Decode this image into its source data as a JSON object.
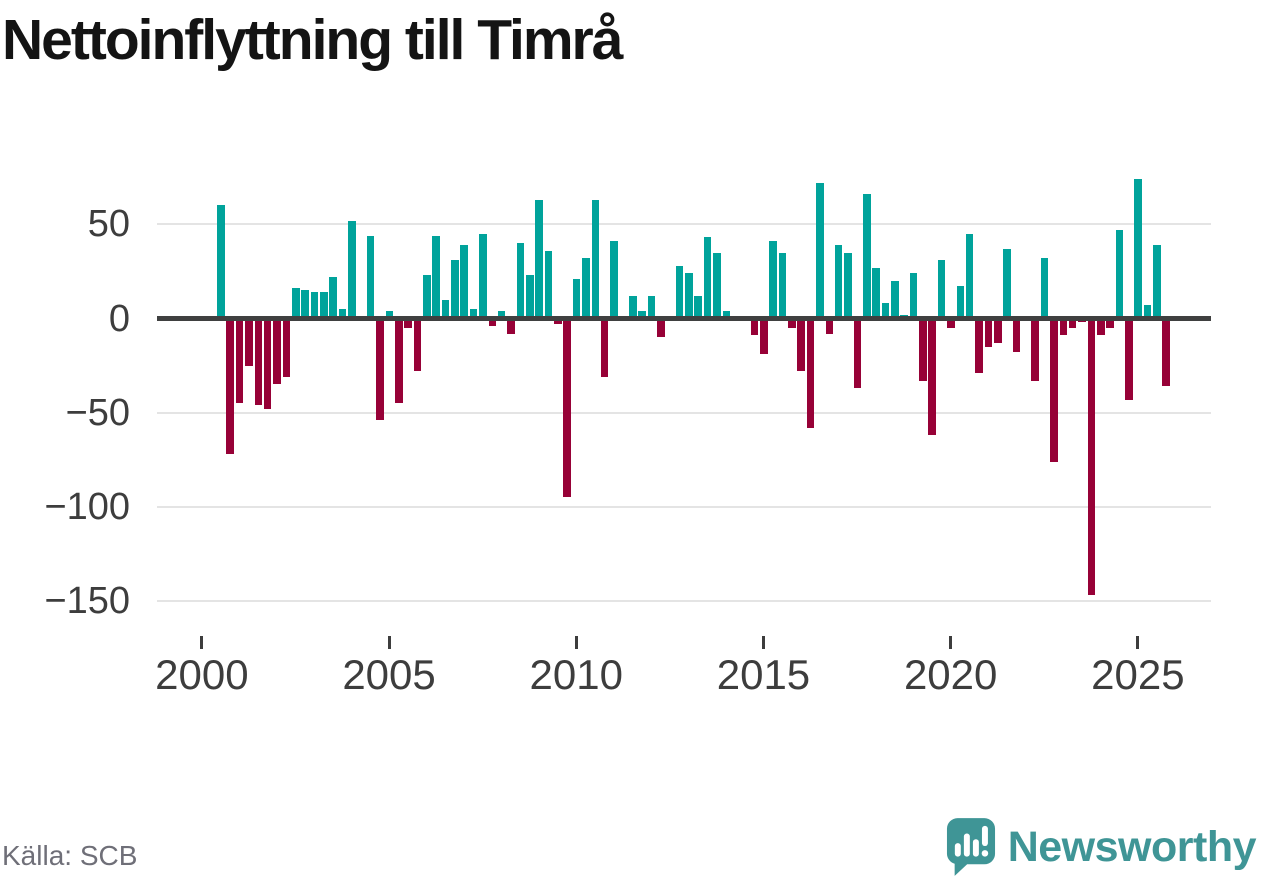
{
  "title": "Nettoinflyttning till Timrå",
  "source": "Källa: SCB",
  "branding": {
    "logo_text": "Newsworthy"
  },
  "colors": {
    "positive": "#00a39b",
    "negative": "#970137",
    "zero_line": "#3f4040",
    "gridline": "#e4e4e4",
    "axis_text": "#3d3d3d",
    "title_text": "#141414",
    "source_text": "#6f6f78",
    "brand": "#3f9596"
  },
  "chart_data": {
    "type": "bar",
    "title": "Nettoinflyttning till Timrå",
    "xlabel": "",
    "ylabel": "",
    "ylim": [
      -160,
      80
    ],
    "grid": "horizontal",
    "legend": "none",
    "y_ticks": [
      50,
      0,
      -50,
      -100,
      -150
    ],
    "y_tick_labels": [
      "50",
      "0",
      "−50",
      "−100",
      "−150"
    ],
    "x_tick_years": [
      2000,
      2005,
      2010,
      2015,
      2020,
      2025
    ],
    "x_tick_labels": [
      "2000",
      "2005",
      "2010",
      "2015",
      "2020",
      "2025"
    ],
    "categories": [
      "2000 Q2",
      "2000 Q3",
      "2000 Q4",
      "2001 Q1",
      "2001 Q2",
      "2001 Q3",
      "2001 Q4",
      "2002 Q1",
      "2002 Q2",
      "2002 Q3",
      "2002 Q4",
      "2003 Q1",
      "2003 Q2",
      "2003 Q3",
      "2003 Q4",
      "2004 Q1",
      "2004 Q2",
      "2004 Q3",
      "2004 Q4",
      "2005 Q1",
      "2005 Q2",
      "2005 Q3",
      "2005 Q4",
      "2006 Q1",
      "2006 Q2",
      "2006 Q3",
      "2006 Q4",
      "2007 Q1",
      "2007 Q2",
      "2007 Q3",
      "2007 Q4",
      "2008 Q1",
      "2008 Q2",
      "2008 Q3",
      "2008 Q4",
      "2009 Q1",
      "2009 Q2",
      "2009 Q3",
      "2009 Q4",
      "2010 Q1",
      "2010 Q2",
      "2010 Q3",
      "2010 Q4",
      "2011 Q1",
      "2011 Q2",
      "2011 Q3",
      "2011 Q4",
      "2012 Q1",
      "2012 Q2",
      "2012 Q3",
      "2012 Q4",
      "2013 Q1",
      "2013 Q2",
      "2013 Q3",
      "2013 Q4",
      "2014 Q1",
      "2014 Q2",
      "2014 Q3",
      "2014 Q4",
      "2015 Q1",
      "2015 Q2",
      "2015 Q3",
      "2015 Q4",
      "2016 Q1",
      "2016 Q2",
      "2016 Q3",
      "2016 Q4",
      "2017 Q1",
      "2017 Q2",
      "2017 Q3",
      "2017 Q4",
      "2018 Q1",
      "2018 Q2",
      "2018 Q3",
      "2018 Q4",
      "2019 Q1",
      "2019 Q2",
      "2019 Q3",
      "2019 Q4",
      "2020 Q1",
      "2020 Q2",
      "2020 Q3",
      "2020 Q4",
      "2021 Q1",
      "2021 Q2",
      "2021 Q3",
      "2021 Q4",
      "2022 Q1",
      "2022 Q2",
      "2022 Q3",
      "2022 Q4",
      "2023 Q1",
      "2023 Q2",
      "2023 Q3",
      "2023 Q4",
      "2024 Q1",
      "2024 Q2",
      "2024 Q3",
      "2024 Q4",
      "2025 Q1",
      "2025 Q2",
      "2025 Q3"
    ],
    "values": [
      60,
      -72,
      -45,
      -25,
      -46,
      -48,
      -35,
      -31,
      16,
      15,
      14,
      14,
      22,
      5,
      52,
      0,
      44,
      -54,
      4,
      -45,
      -5,
      -28,
      23,
      44,
      10,
      31,
      39,
      5,
      45,
      -4,
      4,
      -8,
      40,
      23,
      63,
      36,
      -3,
      -95,
      21,
      32,
      63,
      -31,
      41,
      0,
      12,
      4,
      12,
      -10,
      0,
      28,
      24,
      12,
      43,
      35,
      4,
      0,
      0,
      -9,
      -19,
      41,
      35,
      -5,
      -28,
      -58,
      72,
      -8,
      39,
      35,
      -37,
      66,
      27,
      8,
      20,
      2,
      24,
      -33,
      -62,
      31,
      -5,
      17,
      45,
      -29,
      -15,
      -13,
      37,
      -18,
      0,
      -33,
      32,
      -76,
      -9,
      -5,
      -2,
      -147,
      -9,
      -5,
      47,
      -43,
      74,
      7,
      39,
      -36
    ]
  }
}
